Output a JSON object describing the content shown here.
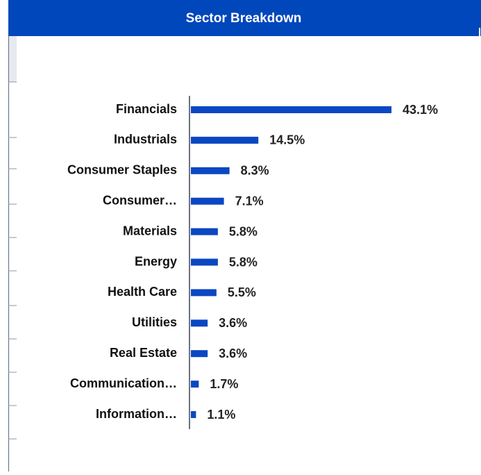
{
  "chart_data": {
    "type": "bar",
    "orientation": "horizontal",
    "title": "Sector Breakdown",
    "categories": [
      "Financials",
      "Industrials",
      "Consumer Staples",
      "Consumer…",
      "Materials",
      "Energy",
      "Health Care",
      "Utilities",
      "Real Estate",
      "Communication…",
      "Information…"
    ],
    "values": [
      43.1,
      14.5,
      8.3,
      7.1,
      5.8,
      5.8,
      5.5,
      3.6,
      3.6,
      1.7,
      1.1
    ],
    "value_labels": [
      "43.1%",
      "14.5%",
      "8.3%",
      "7.1%",
      "5.8%",
      "5.8%",
      "5.5%",
      "3.6%",
      "3.6%",
      "1.7%",
      "1.1%"
    ],
    "color": "#0a47c2"
  }
}
